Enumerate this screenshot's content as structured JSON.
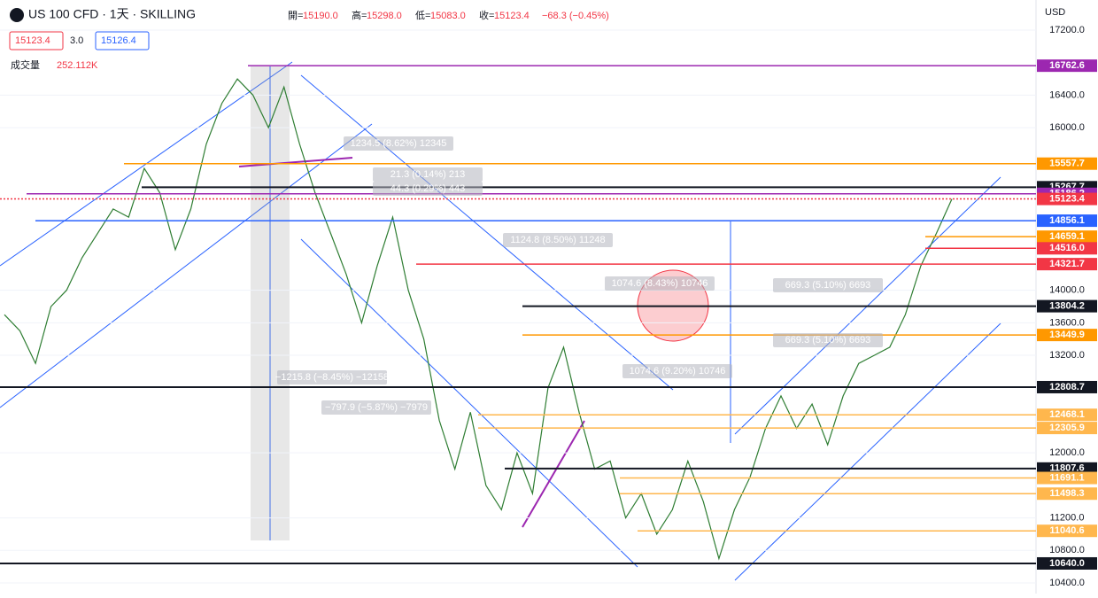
{
  "header": {
    "symbol": "US 100 CFD · 1天 · SKILLING",
    "open_label": "開=",
    "open": "15190.0",
    "high_label": "高=",
    "high": "15298.0",
    "low_label": "低=",
    "low": "15083.0",
    "close_label": "收=",
    "close": "15123.4",
    "change": "−68.3 (−0.45%)",
    "bid": "15123.4",
    "spread": "3.0",
    "ask": "15126.4",
    "volume_label": "成交量",
    "volume": "252.112K",
    "currency": "USD"
  },
  "price_axis": {
    "ylim": [
      10400,
      17200
    ],
    "yticks": [
      {
        "value": 17200,
        "label": "17200.0"
      },
      {
        "value": 16400,
        "label": "16400.0"
      },
      {
        "value": 16000,
        "label": "16000.0"
      },
      {
        "value": 14000,
        "label": "14000.0"
      },
      {
        "value": 13600,
        "label": "13600.0"
      },
      {
        "value": 13200,
        "label": "13200.0"
      },
      {
        "value": 12000,
        "label": "12000.0"
      },
      {
        "value": 11200,
        "label": "11200.0"
      },
      {
        "value": 10800,
        "label": "10800.0"
      },
      {
        "value": 10400,
        "label": "10400.0"
      }
    ]
  },
  "levels": [
    {
      "value": 16762.6,
      "color": "#9c27b0"
    },
    {
      "value": 15557.7,
      "color": "#ff9800"
    },
    {
      "value": 15267.7,
      "color": "#131722"
    },
    {
      "value": 15186.2,
      "color": "#9c27b0"
    },
    {
      "value": 15123.4,
      "color": "#f23645"
    },
    {
      "value": 14856.1,
      "color": "#2962ff"
    },
    {
      "value": 14659.1,
      "color": "#ff9800"
    },
    {
      "value": 14516,
      "label": "14516.0",
      "color": "#f23645"
    },
    {
      "value": 14321.7,
      "color": "#f23645"
    },
    {
      "value": 13804.2,
      "color": "#131722"
    },
    {
      "value": 13449.9,
      "color": "#ff9800"
    },
    {
      "value": 12808.7,
      "color": "#131722"
    },
    {
      "value": 12468.1,
      "color": "#ffb74d"
    },
    {
      "value": 12305.9,
      "color": "#ffb74d"
    },
    {
      "value": 11807.6,
      "color": "#131722"
    },
    {
      "value": 11691.1,
      "color": "#ffb74d"
    },
    {
      "value": 11498.3,
      "color": "#ffb74d"
    },
    {
      "value": 11040.6,
      "color": "#ffb74d"
    },
    {
      "value": 10640,
      "label": "10640.0",
      "color": "#131722"
    }
  ],
  "annotations": [
    "1234.5 (8.62%) 12345",
    "1124.8 (8.50%) 11248",
    "1074.6 (8.43%) 10746",
    "669.3 (5.10%) 6693",
    "669.3 (5.10%) 6693",
    "−1215.8 (−8.45%) −12158",
    "−797.9 (−5.87%) −7979",
    "1074.6 (9.20%) 10746",
    "21.3 (0.14%) 213",
    "44.3 (0.29%) 443"
  ],
  "price_series": {
    "color": "#2e7d32",
    "values": [
      13700,
      13500,
      13100,
      13800,
      14000,
      14400,
      14700,
      15000,
      14900,
      15500,
      15200,
      14500,
      15000,
      15800,
      16300,
      16600,
      16400,
      16000,
      16500,
      15800,
      15200,
      14700,
      14200,
      13600,
      14300,
      14900,
      14000,
      13400,
      12400,
      11800,
      12500,
      11600,
      11300,
      12000,
      11500,
      12800,
      13300,
      12500,
      11800,
      11900,
      11200,
      11500,
      11000,
      11300,
      11900,
      11400,
      10700,
      11300,
      11700,
      12300,
      12700,
      12300,
      12600,
      12100,
      12700,
      13100,
      13200,
      13300,
      13700,
      14300,
      14700,
      15123.4
    ]
  }
}
